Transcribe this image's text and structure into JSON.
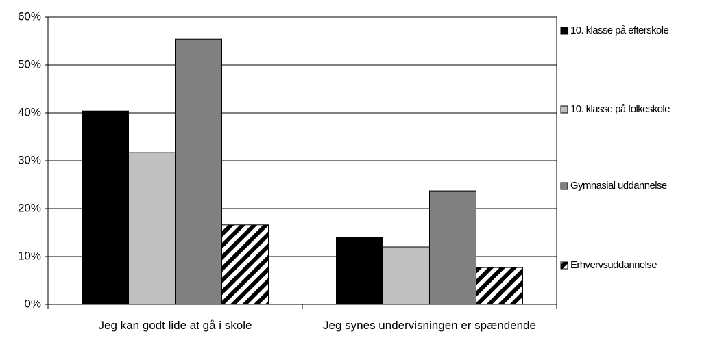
{
  "chart_data": {
    "type": "bar",
    "categories": [
      "Jeg kan godt lide at gå i skole",
      "Jeg synes undervisningen er spændende"
    ],
    "series": [
      {
        "name": "10. klasse på efterskole",
        "color": "#000000",
        "values": [
          40.4,
          14.0
        ]
      },
      {
        "name": "10. klasse på folkeskole",
        "color": "#c0c0c0",
        "values": [
          31.7,
          12.0
        ]
      },
      {
        "name": "Gymnasial uddannelse",
        "color": "#808080",
        "values": [
          55.4,
          23.7
        ]
      },
      {
        "name": "Erhvervsuddannelse",
        "color": "#000000",
        "pattern": "hatch",
        "values": [
          16.6,
          7.7
        ]
      }
    ],
    "ylim": [
      0,
      60
    ],
    "yticks": [
      {
        "value": 0,
        "label": "0%"
      },
      {
        "value": 10,
        "label": "10%"
      },
      {
        "value": 20,
        "label": "20%"
      },
      {
        "value": 30,
        "label": "30%"
      },
      {
        "value": 40,
        "label": "40%"
      },
      {
        "value": 50,
        "label": "50%"
      },
      {
        "value": 60,
        "label": "60%"
      }
    ],
    "grid": true,
    "legend": "right"
  }
}
